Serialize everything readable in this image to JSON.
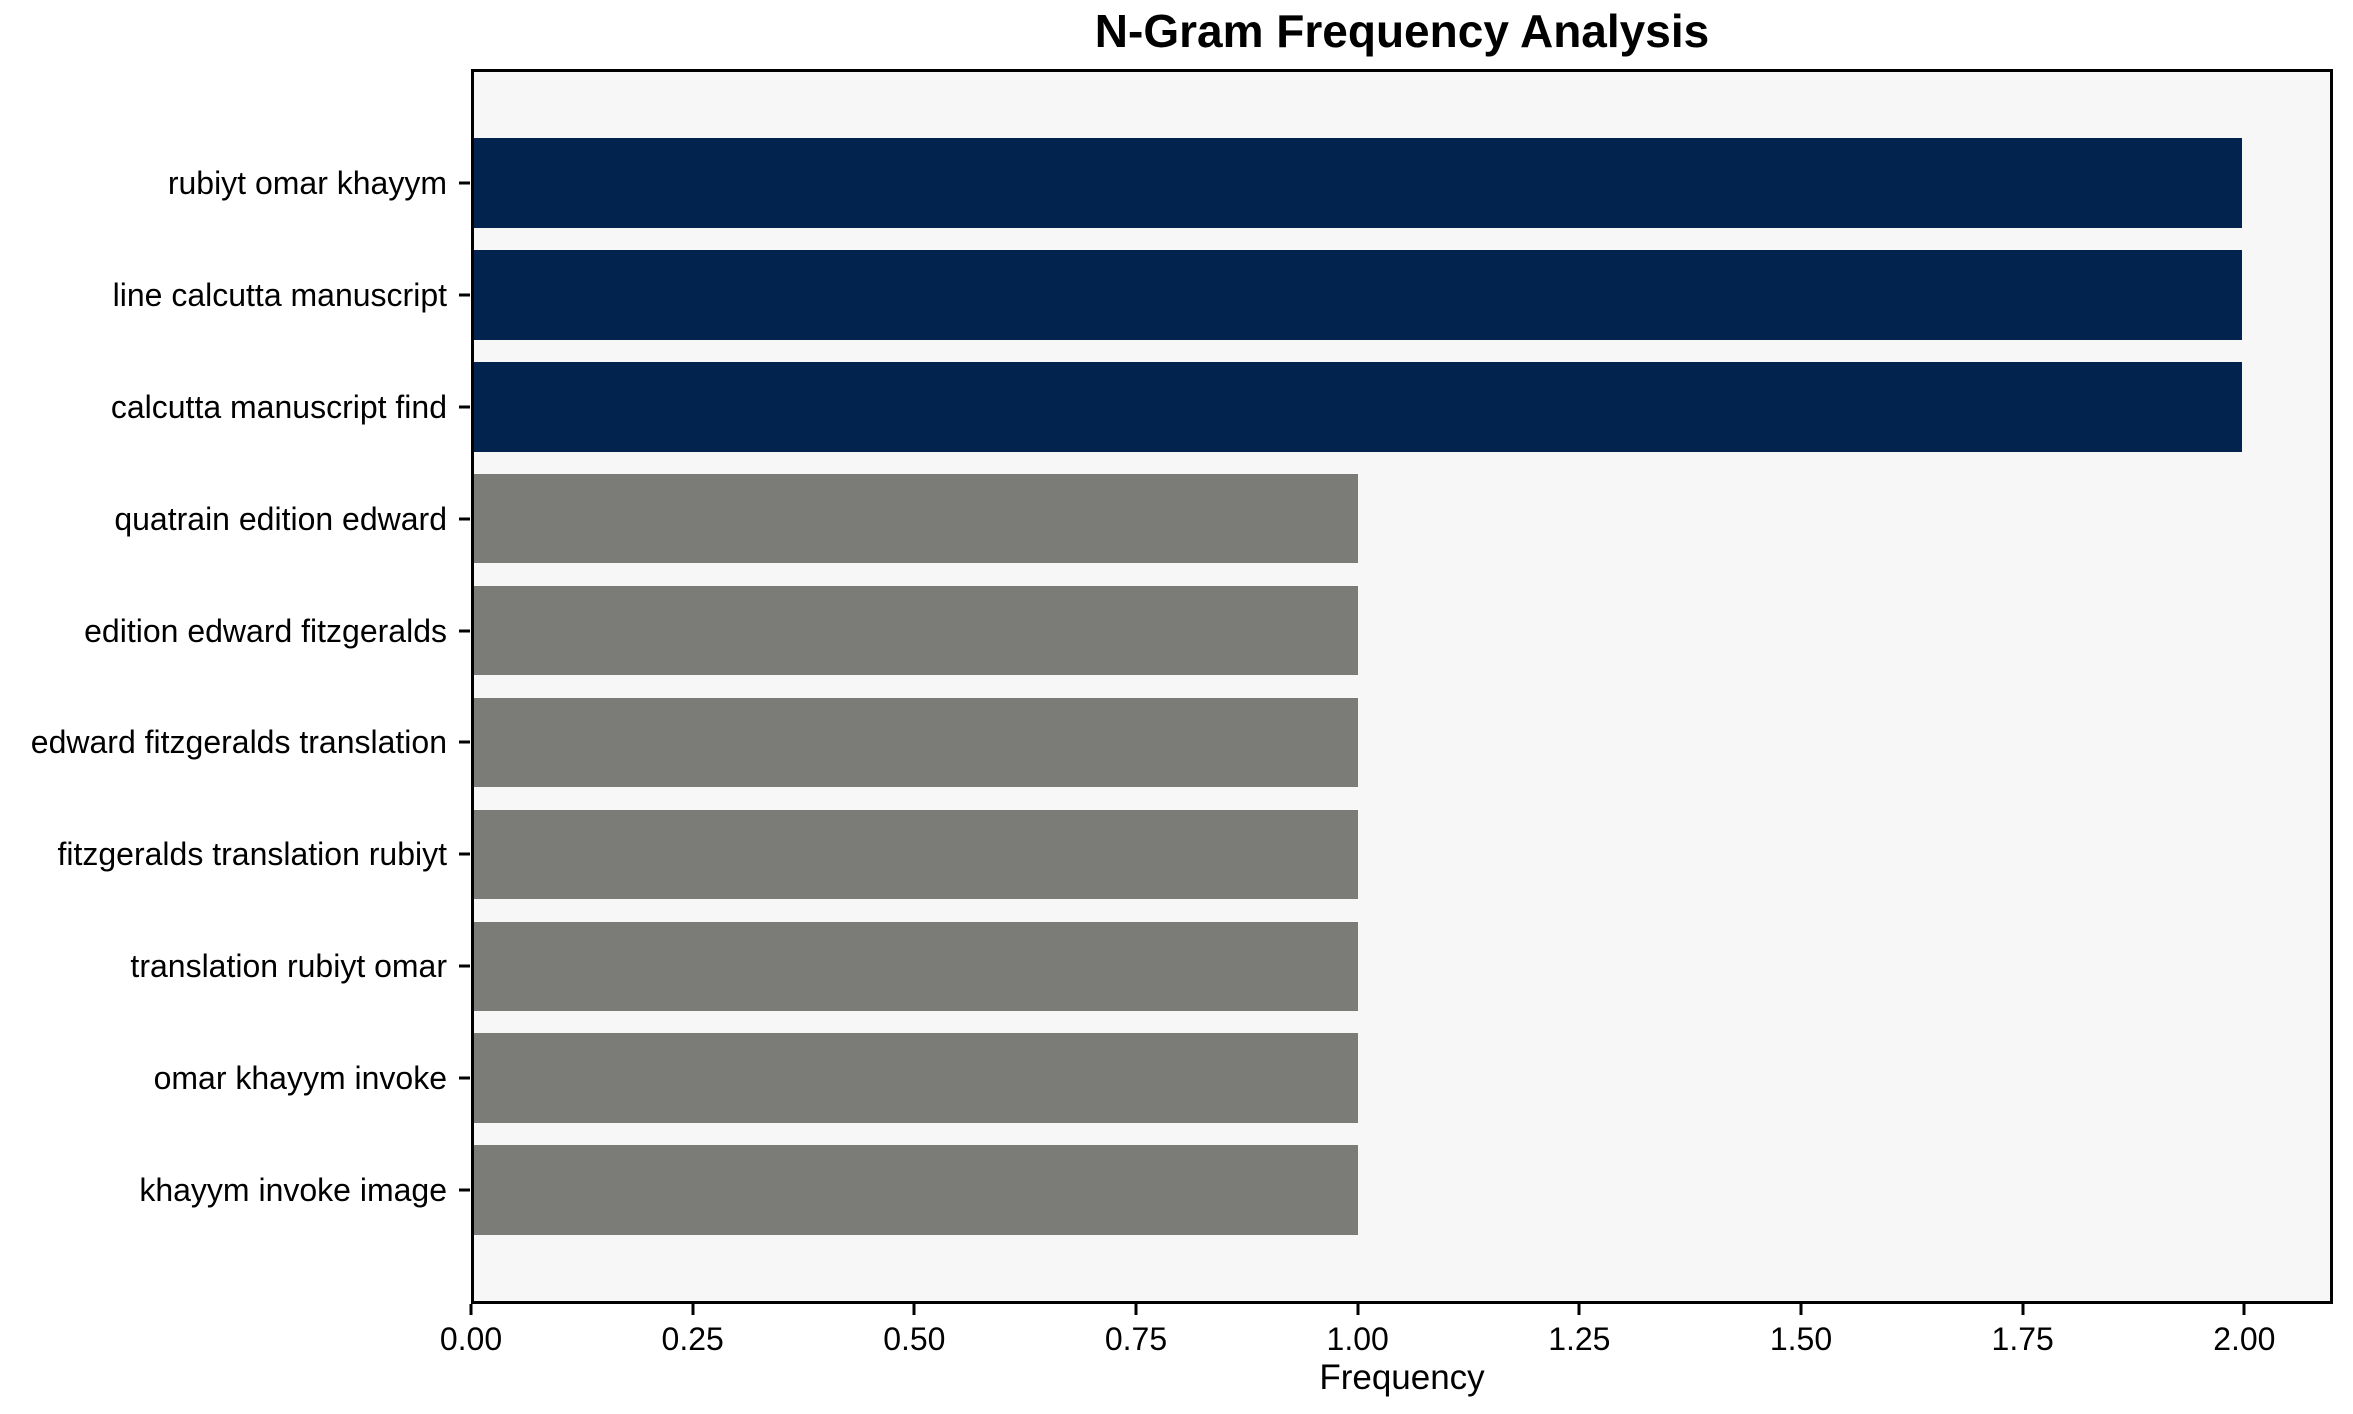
{
  "chart_data": {
    "type": "bar",
    "orientation": "horizontal",
    "title": "N-Gram Frequency Analysis",
    "xlabel": "Frequency",
    "ylabel": "",
    "categories": [
      "rubiyt omar khayym",
      "line calcutta manuscript",
      "calcutta manuscript find",
      "quatrain edition edward",
      "edition edward fitzgeralds",
      "edward fitzgeralds translation",
      "fitzgeralds translation rubiyt",
      "translation rubiyt omar",
      "omar khayym invoke",
      "khayym invoke image"
    ],
    "values": [
      2,
      2,
      2,
      1,
      1,
      1,
      1,
      1,
      1,
      1
    ],
    "bar_colors": [
      "#02234d",
      "#02234d",
      "#02234d",
      "#7b7b78",
      "#7b7b78",
      "#7b7b78",
      "#7b7b78",
      "#7b7b78",
      "#7b7b78",
      "#7b7b78"
    ],
    "x_tick_labels": [
      "0.00",
      "0.25",
      "0.50",
      "0.75",
      "1.00",
      "1.25",
      "1.50",
      "1.75",
      "2.00"
    ],
    "x_tick_values": [
      0,
      0.25,
      0.5,
      0.75,
      1.0,
      1.25,
      1.5,
      1.75,
      2.0
    ],
    "xlim": [
      0,
      2.1
    ],
    "bar_height_fraction": 0.8,
    "grid": false,
    "legend": null,
    "colors": {
      "highlight": "#02234d",
      "base": "#7b7b78",
      "plot_background": "#f7f7f7",
      "figure_background": "#ffffff",
      "spine": "#000000",
      "text": "#000000"
    }
  }
}
